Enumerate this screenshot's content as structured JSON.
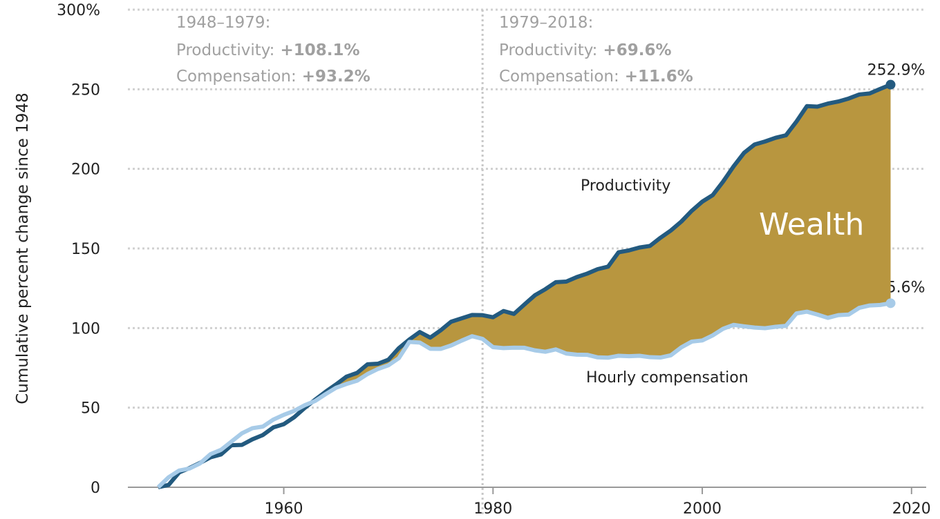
{
  "chart_data": {
    "type": "line",
    "ylabel": "Cumulative percent change since 1948",
    "x": [
      1948,
      1949,
      1950,
      1951,
      1952,
      1953,
      1954,
      1955,
      1956,
      1957,
      1958,
      1959,
      1960,
      1961,
      1962,
      1963,
      1964,
      1965,
      1966,
      1967,
      1968,
      1969,
      1970,
      1971,
      1972,
      1973,
      1974,
      1975,
      1976,
      1977,
      1978,
      1979,
      1980,
      1981,
      1982,
      1983,
      1984,
      1985,
      1986,
      1987,
      1988,
      1989,
      1990,
      1991,
      1992,
      1993,
      1994,
      1995,
      1996,
      1997,
      1998,
      1999,
      2000,
      2001,
      2002,
      2003,
      2004,
      2005,
      2006,
      2007,
      2008,
      2009,
      2010,
      2011,
      2012,
      2013,
      2014,
      2015,
      2016,
      2017,
      2018
    ],
    "series": [
      {
        "name": "Productivity",
        "color": "#235a7f",
        "values": [
          0,
          1.5,
          9.3,
          12.1,
          15.3,
          18.8,
          20.6,
          26.4,
          26.6,
          30.1,
          32.8,
          37.6,
          39.6,
          44.0,
          49.8,
          55.0,
          60.0,
          64.6,
          69.5,
          71.8,
          77.2,
          77.6,
          80.1,
          87.4,
          92.8,
          97.5,
          94.0,
          98.6,
          104.0,
          106.1,
          108.2,
          108.1,
          106.8,
          110.7,
          108.9,
          114.8,
          120.6,
          124.4,
          128.8,
          129.2,
          132.0,
          134.2,
          137.0,
          138.6,
          147.6,
          148.8,
          150.6,
          151.6,
          156.7,
          161.3,
          166.9,
          173.7,
          179.4,
          183.5,
          192.1,
          201.6,
          210.1,
          215.3,
          217.2,
          219.5,
          221.1,
          229.7,
          239.4,
          239.1,
          241.0,
          242.3,
          244.2,
          246.7,
          247.4,
          250.2,
          252.9
        ],
        "value_labels": [
          null,
          null,
          null,
          null,
          null,
          null,
          null,
          null,
          null,
          null,
          null,
          null,
          null,
          null,
          null,
          null,
          null,
          null,
          null,
          null,
          null,
          null,
          null,
          null,
          null,
          null,
          null,
          null,
          null,
          null,
          null,
          null,
          null,
          null,
          null,
          null,
          null,
          null,
          null,
          null,
          null,
          null,
          null,
          null,
          null,
          null,
          null,
          null,
          null,
          null,
          null,
          null,
          null,
          null,
          null,
          null,
          null,
          null,
          null,
          null,
          null,
          null,
          null,
          null,
          null,
          null,
          null,
          null,
          null,
          null,
          "252.9%"
        ]
      },
      {
        "name": "Hourly compensation",
        "color": "#a7cbe8",
        "values": [
          0,
          6.3,
          10.5,
          11.8,
          15.0,
          20.8,
          23.5,
          28.7,
          33.9,
          37.1,
          38.1,
          42.5,
          45.5,
          48.0,
          51.5,
          54.2,
          58.5,
          62.5,
          64.9,
          66.9,
          71.1,
          74.3,
          76.6,
          81.1,
          91.3,
          90.9,
          87.0,
          86.9,
          89.1,
          92.1,
          94.9,
          93.2,
          88.0,
          87.4,
          87.7,
          87.6,
          86.0,
          85.1,
          86.6,
          84.0,
          83.3,
          83.2,
          81.6,
          81.4,
          82.6,
          82.3,
          82.6,
          81.7,
          81.5,
          82.9,
          87.9,
          91.5,
          92.2,
          95.4,
          99.6,
          102.0,
          101.1,
          100.3,
          99.9,
          100.8,
          101.4,
          109.2,
          110.3,
          108.5,
          106.4,
          108.1,
          108.5,
          112.7,
          114.2,
          114.5,
          115.6
        ],
        "value_labels": [
          null,
          null,
          null,
          null,
          null,
          null,
          null,
          null,
          null,
          null,
          null,
          null,
          null,
          null,
          null,
          null,
          null,
          null,
          null,
          null,
          null,
          null,
          null,
          null,
          null,
          null,
          null,
          null,
          null,
          null,
          null,
          null,
          null,
          null,
          null,
          null,
          null,
          null,
          null,
          null,
          null,
          null,
          null,
          null,
          null,
          null,
          null,
          null,
          null,
          null,
          null,
          null,
          null,
          null,
          null,
          null,
          null,
          null,
          null,
          null,
          null,
          null,
          null,
          null,
          null,
          null,
          null,
          null,
          null,
          null,
          "115.6%"
        ]
      }
    ],
    "gap_fill": {
      "label": "Wealth",
      "color": "#b8963f"
    },
    "reference_line_x": 1979,
    "periods": [
      {
        "heading": "1948–1979:",
        "lines": [
          {
            "label": "Productivity:",
            "value": "+108.1%"
          },
          {
            "label": "Compensation:",
            "value": "+93.2%"
          }
        ]
      },
      {
        "heading": "1979–2018:",
        "lines": [
          {
            "label": "Productivity:",
            "value": "+69.6%"
          },
          {
            "label": "Compensation:",
            "value": "+11.6%"
          }
        ]
      }
    ],
    "xlim": [
      1945.1,
      2021.4
    ],
    "xticks": [
      1960,
      1980,
      2000,
      2020
    ],
    "ylim": [
      0,
      300
    ],
    "yticks": [
      0,
      50,
      100,
      150,
      200,
      250,
      {
        "value": 300,
        "label": "300%"
      }
    ],
    "grid": true
  }
}
